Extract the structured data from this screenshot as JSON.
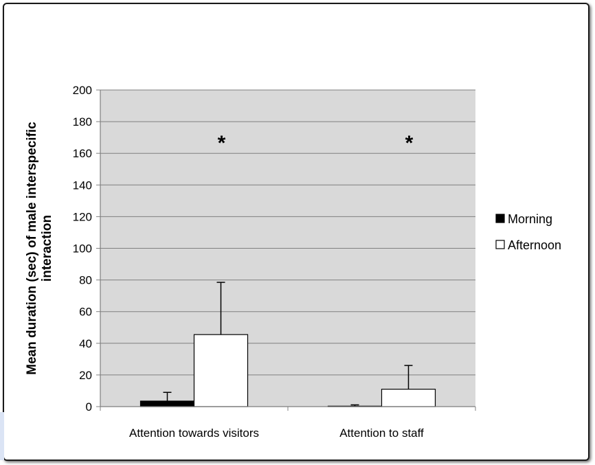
{
  "chart_data": {
    "type": "bar",
    "title": "",
    "xlabel": "",
    "ylabel": "Mean duration (sec) of male interspecific interaction",
    "ylim": [
      0,
      200
    ],
    "yticks": [
      0,
      20,
      40,
      60,
      80,
      100,
      120,
      140,
      160,
      180,
      200
    ],
    "categories": [
      "Attention towards visitors",
      "Attention to staff"
    ],
    "series": [
      {
        "name": "Morning",
        "color": "#000000",
        "values": [
          3.5,
          0.3
        ],
        "error": [
          5.5,
          0.8
        ]
      },
      {
        "name": "Afternoon",
        "color": "#ffffff",
        "values": [
          45.5,
          11
        ],
        "error": [
          33,
          15
        ]
      }
    ],
    "grid": true,
    "plot_background": "#d9d9d9",
    "legend_position": "right",
    "annotations": [
      {
        "text": "*",
        "category": "Attention towards visitors",
        "y": 170
      },
      {
        "text": "*",
        "category": "Attention to staff",
        "y": 170
      }
    ]
  }
}
